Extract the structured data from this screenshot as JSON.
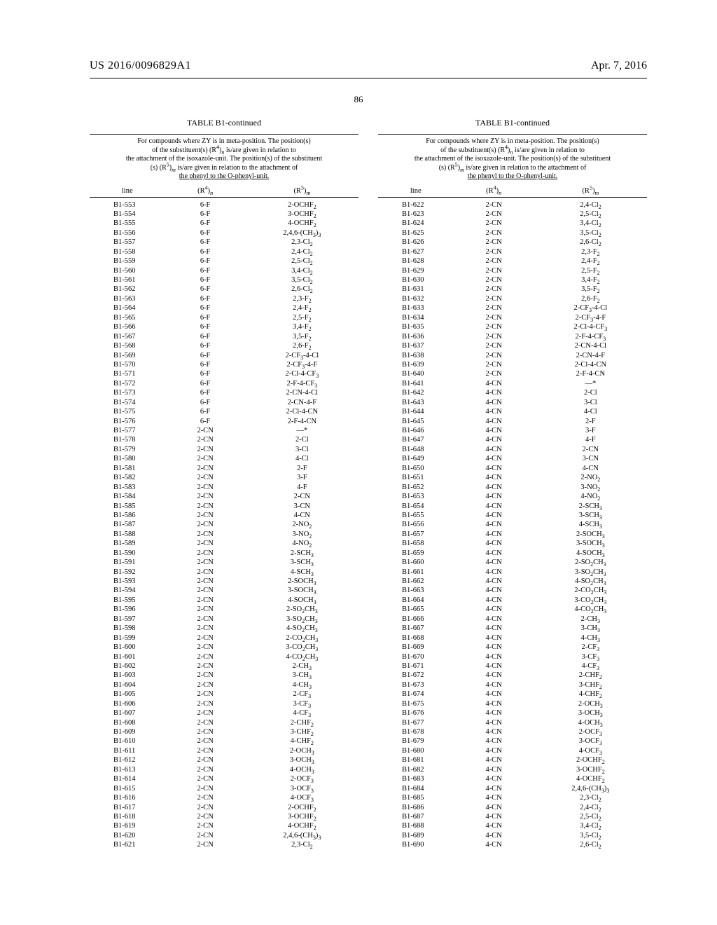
{
  "header": {
    "pub_number": "US 2016/0096829A1",
    "pub_date": "Apr. 7, 2016",
    "page_number": "86"
  },
  "table": {
    "title": "TABLE B1-continued",
    "caption_lines": [
      "For compounds where ZY is in meta-position. The position(s)",
      "of the substituent(s) (R⁴)ₙ is/are given in relation to",
      "the attachment of the isoxazole-unit. The position(s) of the substituent",
      "(s) (R⁵)ₘ is/are given in relation to the attachment of",
      "the phenyl to the O-phenyl-unit."
    ],
    "columns": [
      "line",
      "(R⁴)ₙ",
      "(R⁵)ₘ"
    ]
  },
  "left_rows": [
    [
      "B1-553",
      "6-F",
      "2-OCHF₂"
    ],
    [
      "B1-554",
      "6-F",
      "3-OCHF₂"
    ],
    [
      "B1-555",
      "6-F",
      "4-OCHF₂"
    ],
    [
      "B1-556",
      "6-F",
      "2,4,6-(CH₃)₃"
    ],
    [
      "B1-557",
      "6-F",
      "2,3-Cl₂"
    ],
    [
      "B1-558",
      "6-F",
      "2,4-Cl₂"
    ],
    [
      "B1-559",
      "6-F",
      "2,5-Cl₂"
    ],
    [
      "B1-560",
      "6-F",
      "3,4-Cl₂"
    ],
    [
      "B1-561",
      "6-F",
      "3,5-Cl₂"
    ],
    [
      "B1-562",
      "6-F",
      "2,6-Cl₂"
    ],
    [
      "B1-563",
      "6-F",
      "2,3-F₂"
    ],
    [
      "B1-564",
      "6-F",
      "2,4-F₂"
    ],
    [
      "B1-565",
      "6-F",
      "2,5-F₂"
    ],
    [
      "B1-566",
      "6-F",
      "3,4-F₂"
    ],
    [
      "B1-567",
      "6-F",
      "3,5-F₂"
    ],
    [
      "B1-568",
      "6-F",
      "2,6-F₂"
    ],
    [
      "B1-569",
      "6-F",
      "2-CF₃-4-Cl"
    ],
    [
      "B1-570",
      "6-F",
      "2-CF₃-4-F"
    ],
    [
      "B1-571",
      "6-F",
      "2-Cl-4-CF₃"
    ],
    [
      "B1-572",
      "6-F",
      "2-F-4-CF₃"
    ],
    [
      "B1-573",
      "6-F",
      "2-CN-4-Cl"
    ],
    [
      "B1-574",
      "6-F",
      "2-CN-4-F"
    ],
    [
      "B1-575",
      "6-F",
      "2-Cl-4-CN"
    ],
    [
      "B1-576",
      "6-F",
      "2-F-4-CN"
    ],
    [
      "B1-577",
      "2-CN",
      "—*"
    ],
    [
      "B1-578",
      "2-CN",
      "2-Cl"
    ],
    [
      "B1-579",
      "2-CN",
      "3-Cl"
    ],
    [
      "B1-580",
      "2-CN",
      "4-Cl"
    ],
    [
      "B1-581",
      "2-CN",
      "2-F"
    ],
    [
      "B1-582",
      "2-CN",
      "3-F"
    ],
    [
      "B1-583",
      "2-CN",
      "4-F"
    ],
    [
      "B1-584",
      "2-CN",
      "2-CN"
    ],
    [
      "B1-585",
      "2-CN",
      "3-CN"
    ],
    [
      "B1-586",
      "2-CN",
      "4-CN"
    ],
    [
      "B1-587",
      "2-CN",
      "2-NO₂"
    ],
    [
      "B1-588",
      "2-CN",
      "3-NO₂"
    ],
    [
      "B1-589",
      "2-CN",
      "4-NO₂"
    ],
    [
      "B1-590",
      "2-CN",
      "2-SCH₃"
    ],
    [
      "B1-591",
      "2-CN",
      "3-SCH₃"
    ],
    [
      "B1-592",
      "2-CN",
      "4-SCH₃"
    ],
    [
      "B1-593",
      "2-CN",
      "2-SOCH₃"
    ],
    [
      "B1-594",
      "2-CN",
      "3-SOCH₃"
    ],
    [
      "B1-595",
      "2-CN",
      "4-SOCH₃"
    ],
    [
      "B1-596",
      "2-CN",
      "2-SO₂CH₃"
    ],
    [
      "B1-597",
      "2-CN",
      "3-SO₂CH₃"
    ],
    [
      "B1-598",
      "2-CN",
      "4-SO₂CH₃"
    ],
    [
      "B1-599",
      "2-CN",
      "2-CO₂CH₃"
    ],
    [
      "B1-600",
      "2-CN",
      "3-CO₂CH₃"
    ],
    [
      "B1-601",
      "2-CN",
      "4-CO₂CH₃"
    ],
    [
      "B1-602",
      "2-CN",
      "2-CH₃"
    ],
    [
      "B1-603",
      "2-CN",
      "3-CH₃"
    ],
    [
      "B1-604",
      "2-CN",
      "4-CH₃"
    ],
    [
      "B1-605",
      "2-CN",
      "2-CF₃"
    ],
    [
      "B1-606",
      "2-CN",
      "3-CF₃"
    ],
    [
      "B1-607",
      "2-CN",
      "4-CF₃"
    ],
    [
      "B1-608",
      "2-CN",
      "2-CHF₂"
    ],
    [
      "B1-609",
      "2-CN",
      "3-CHF₂"
    ],
    [
      "B1-610",
      "2-CN",
      "4-CHF₂"
    ],
    [
      "B1-611",
      "2-CN",
      "2-OCH₃"
    ],
    [
      "B1-612",
      "2-CN",
      "3-OCH₃"
    ],
    [
      "B1-613",
      "2-CN",
      "4-OCH₃"
    ],
    [
      "B1-614",
      "2-CN",
      "2-OCF₃"
    ],
    [
      "B1-615",
      "2-CN",
      "3-OCF₃"
    ],
    [
      "B1-616",
      "2-CN",
      "4-OCF₃"
    ],
    [
      "B1-617",
      "2-CN",
      "2-OCHF₂"
    ],
    [
      "B1-618",
      "2-CN",
      "3-OCHF₂"
    ],
    [
      "B1-619",
      "2-CN",
      "4-OCHF₂"
    ],
    [
      "B1-620",
      "2-CN",
      "2,4,6-(CH₃)₃"
    ],
    [
      "B1-621",
      "2-CN",
      "2,3-Cl₂"
    ]
  ],
  "right_rows": [
    [
      "B1-622",
      "2-CN",
      "2,4-Cl₂"
    ],
    [
      "B1-623",
      "2-CN",
      "2,5-Cl₂"
    ],
    [
      "B1-624",
      "2-CN",
      "3,4-Cl₂"
    ],
    [
      "B1-625",
      "2-CN",
      "3,5-Cl₂"
    ],
    [
      "B1-626",
      "2-CN",
      "2,6-Cl₂"
    ],
    [
      "B1-627",
      "2-CN",
      "2,3-F₂"
    ],
    [
      "B1-628",
      "2-CN",
      "2,4-F₂"
    ],
    [
      "B1-629",
      "2-CN",
      "2,5-F₂"
    ],
    [
      "B1-630",
      "2-CN",
      "3,4-F₂"
    ],
    [
      "B1-631",
      "2-CN",
      "3,5-F₂"
    ],
    [
      "B1-632",
      "2-CN",
      "2,6-F₂"
    ],
    [
      "B1-633",
      "2-CN",
      "2-CF₃-4-Cl"
    ],
    [
      "B1-634",
      "2-CN",
      "2-CF₃-4-F"
    ],
    [
      "B1-635",
      "2-CN",
      "2-Cl-4-CF₃"
    ],
    [
      "B1-636",
      "2-CN",
      "2-F-4-CF₃"
    ],
    [
      "B1-637",
      "2-CN",
      "2-CN-4-Cl"
    ],
    [
      "B1-638",
      "2-CN",
      "2-CN-4-F"
    ],
    [
      "B1-639",
      "2-CN",
      "2-Cl-4-CN"
    ],
    [
      "B1-640",
      "2-CN",
      "2-F-4-CN"
    ],
    [
      "B1-641",
      "4-CN",
      "—*"
    ],
    [
      "B1-642",
      "4-CN",
      "2-Cl"
    ],
    [
      "B1-643",
      "4-CN",
      "3-Cl"
    ],
    [
      "B1-644",
      "4-CN",
      "4-Cl"
    ],
    [
      "B1-645",
      "4-CN",
      "2-F"
    ],
    [
      "B1-646",
      "4-CN",
      "3-F"
    ],
    [
      "B1-647",
      "4-CN",
      "4-F"
    ],
    [
      "B1-648",
      "4-CN",
      "2-CN"
    ],
    [
      "B1-649",
      "4-CN",
      "3-CN"
    ],
    [
      "B1-650",
      "4-CN",
      "4-CN"
    ],
    [
      "B1-651",
      "4-CN",
      "2-NO₂"
    ],
    [
      "B1-652",
      "4-CN",
      "3-NO₂"
    ],
    [
      "B1-653",
      "4-CN",
      "4-NO₂"
    ],
    [
      "B1-654",
      "4-CN",
      "2-SCH₃"
    ],
    [
      "B1-655",
      "4-CN",
      "3-SCH₃"
    ],
    [
      "B1-656",
      "4-CN",
      "4-SCH₃"
    ],
    [
      "B1-657",
      "4-CN",
      "2-SOCH₃"
    ],
    [
      "B1-658",
      "4-CN",
      "3-SOCH₃"
    ],
    [
      "B1-659",
      "4-CN",
      "4-SOCH₃"
    ],
    [
      "B1-660",
      "4-CN",
      "2-SO₂CH₃"
    ],
    [
      "B1-661",
      "4-CN",
      "3-SO₂CH₃"
    ],
    [
      "B1-662",
      "4-CN",
      "4-SO₂CH₃"
    ],
    [
      "B1-663",
      "4-CN",
      "2-CO₂CH₃"
    ],
    [
      "B1-664",
      "4-CN",
      "3-CO₂CH₃"
    ],
    [
      "B1-665",
      "4-CN",
      "4-CO₂CH₃"
    ],
    [
      "B1-666",
      "4-CN",
      "2-CH₃"
    ],
    [
      "B1-667",
      "4-CN",
      "3-CH₃"
    ],
    [
      "B1-668",
      "4-CN",
      "4-CH₃"
    ],
    [
      "B1-669",
      "4-CN",
      "2-CF₃"
    ],
    [
      "B1-670",
      "4-CN",
      "3-CF₃"
    ],
    [
      "B1-671",
      "4-CN",
      "4-CF₃"
    ],
    [
      "B1-672",
      "4-CN",
      "2-CHF₂"
    ],
    [
      "B1-673",
      "4-CN",
      "3-CHF₂"
    ],
    [
      "B1-674",
      "4-CN",
      "4-CHF₂"
    ],
    [
      "B1-675",
      "4-CN",
      "2-OCH₃"
    ],
    [
      "B1-676",
      "4-CN",
      "3-OCH₃"
    ],
    [
      "B1-677",
      "4-CN",
      "4-OCH₃"
    ],
    [
      "B1-678",
      "4-CN",
      "2-OCF₃"
    ],
    [
      "B1-679",
      "4-CN",
      "3-OCF₃"
    ],
    [
      "B1-680",
      "4-CN",
      "4-OCF₃"
    ],
    [
      "B1-681",
      "4-CN",
      "2-OCHF₂"
    ],
    [
      "B1-682",
      "4-CN",
      "3-OCHF₂"
    ],
    [
      "B1-683",
      "4-CN",
      "4-OCHF₂"
    ],
    [
      "B1-684",
      "4-CN",
      "2,4,6-(CH₃)₃"
    ],
    [
      "B1-685",
      "4-CN",
      "2,3-Cl₂"
    ],
    [
      "B1-686",
      "4-CN",
      "2,4-Cl₂"
    ],
    [
      "B1-687",
      "4-CN",
      "2,5-Cl₂"
    ],
    [
      "B1-688",
      "4-CN",
      "3,4-Cl₂"
    ],
    [
      "B1-689",
      "4-CN",
      "3,5-Cl₂"
    ],
    [
      "B1-690",
      "4-CN",
      "2,6-Cl₂"
    ]
  ]
}
